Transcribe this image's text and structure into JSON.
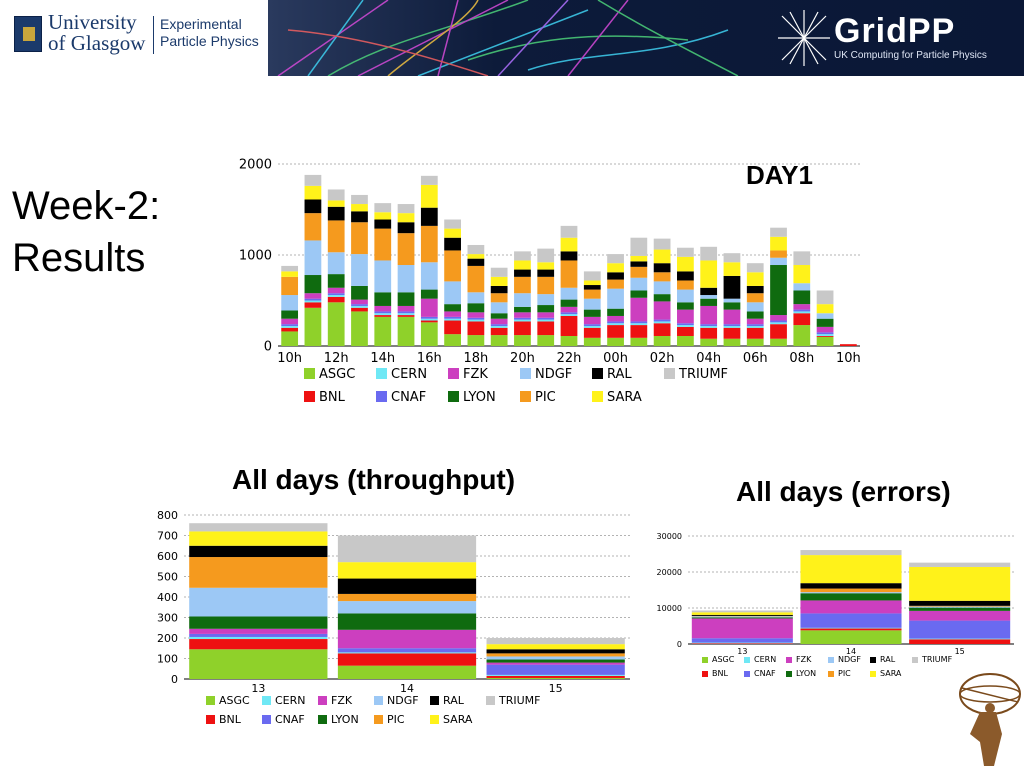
{
  "header": {
    "university_line1": "University",
    "university_line2": "of Glasgow",
    "department_line1": "Experimental",
    "department_line2": "Particle Physics",
    "project_name": "GridPP",
    "project_tagline": "UK Computing for Particle Physics"
  },
  "slide": {
    "title_line1": "Week-2:",
    "title_line2": "Results",
    "label_day1": "DAY1",
    "label_throughput": "All days (throughput)",
    "label_errors": "All days (errors)"
  },
  "colors": {
    "ASGC": "#8fd12a",
    "CERN": "#6fe8f5",
    "FZK": "#cc3fbf",
    "NDGF": "#9cc8f5",
    "RAL": "#000000",
    "TRIUMF": "#c8c8c8",
    "BNL": "#ee1111",
    "CNAF": "#6a6af0",
    "LYON": "#0f6b0f",
    "PIC": "#f59a1e",
    "SARA": "#fff21a"
  },
  "legend": {
    "row1": [
      "ASGC",
      "CERN",
      "FZK",
      "NDGF",
      "RAL",
      "TRIUMF"
    ],
    "row2": [
      "BNL",
      "CNAF",
      "LYON",
      "PIC",
      "SARA"
    ]
  },
  "chart_data": [
    {
      "id": "day1",
      "type": "bar",
      "stacked": true,
      "categories": [
        "10h",
        "11h",
        "12h",
        "13h",
        "14h",
        "15h",
        "16h",
        "17h",
        "18h",
        "19h",
        "20h",
        "21h",
        "22h",
        "23h",
        "00h",
        "01h",
        "02h",
        "03h",
        "04h",
        "05h",
        "06h",
        "07h",
        "08h",
        "09h",
        "10h"
      ],
      "tick_labels": [
        "10h",
        "12h",
        "14h",
        "16h",
        "18h",
        "20h",
        "22h",
        "00h",
        "02h",
        "04h",
        "06h",
        "08h",
        "10h"
      ],
      "ylim": [
        0,
        2000
      ],
      "yticks": [
        0,
        1000,
        2000
      ],
      "series": [
        {
          "name": "ASGC",
          "values": [
            160,
            420,
            480,
            380,
            320,
            320,
            260,
            130,
            120,
            120,
            120,
            120,
            110,
            90,
            90,
            90,
            110,
            110,
            80,
            80,
            80,
            80,
            230,
            100,
            0
          ]
        },
        {
          "name": "BNL",
          "values": [
            40,
            60,
            60,
            40,
            20,
            20,
            20,
            150,
            150,
            80,
            150,
            150,
            220,
            110,
            140,
            140,
            140,
            100,
            120,
            120,
            120,
            160,
            130,
            10,
            20
          ]
        },
        {
          "name": "CERN",
          "values": [
            20,
            20,
            20,
            20,
            20,
            20,
            20,
            20,
            20,
            20,
            20,
            20,
            20,
            20,
            20,
            20,
            20,
            20,
            20,
            20,
            20,
            20,
            20,
            20,
            0
          ]
        },
        {
          "name": "CNAF",
          "values": [
            20,
            20,
            20,
            20,
            20,
            20,
            20,
            20,
            20,
            20,
            20,
            20,
            20,
            20,
            20,
            20,
            20,
            20,
            20,
            20,
            20,
            20,
            20,
            20,
            0
          ]
        },
        {
          "name": "FZK",
          "values": [
            60,
            60,
            60,
            50,
            60,
            60,
            200,
            60,
            60,
            60,
            60,
            60,
            60,
            80,
            60,
            260,
            200,
            150,
            200,
            160,
            60,
            60,
            60,
            60,
            0
          ]
        },
        {
          "name": "LYON",
          "values": [
            90,
            200,
            150,
            150,
            150,
            150,
            100,
            80,
            100,
            60,
            60,
            80,
            80,
            80,
            80,
            80,
            80,
            80,
            80,
            80,
            80,
            550,
            150,
            90,
            0
          ]
        },
        {
          "name": "NDGF",
          "values": [
            170,
            380,
            240,
            350,
            350,
            300,
            300,
            250,
            120,
            120,
            150,
            120,
            130,
            120,
            220,
            140,
            140,
            140,
            40,
            40,
            100,
            80,
            80,
            60,
            0
          ]
        },
        {
          "name": "PIC",
          "values": [
            200,
            300,
            350,
            350,
            350,
            350,
            400,
            340,
            290,
            100,
            180,
            190,
            300,
            100,
            100,
            120,
            100,
            100,
            0,
            0,
            100,
            80,
            0,
            0,
            0
          ]
        },
        {
          "name": "RAL",
          "values": [
            0,
            150,
            150,
            120,
            100,
            120,
            200,
            140,
            80,
            80,
            80,
            80,
            100,
            50,
            80,
            60,
            100,
            100,
            80,
            250,
            80,
            0,
            0,
            0,
            0
          ]
        },
        {
          "name": "SARA",
          "values": [
            60,
            150,
            70,
            80,
            80,
            100,
            250,
            100,
            50,
            100,
            100,
            80,
            150,
            50,
            100,
            60,
            150,
            160,
            300,
            150,
            150,
            150,
            200,
            100,
            0
          ]
        },
        {
          "name": "TRIUMF",
          "values": [
            60,
            120,
            120,
            100,
            100,
            100,
            100,
            100,
            100,
            100,
            100,
            150,
            130,
            100,
            100,
            200,
            120,
            100,
            150,
            100,
            100,
            100,
            150,
            150,
            0
          ]
        }
      ]
    },
    {
      "id": "throughput",
      "type": "bar",
      "stacked": true,
      "categories": [
        "13",
        "14",
        "15"
      ],
      "ylim": [
        0,
        800
      ],
      "yticks": [
        0,
        100,
        200,
        300,
        400,
        500,
        600,
        700,
        800
      ],
      "series": [
        {
          "name": "ASGC",
          "values": [
            145,
            65,
            5
          ]
        },
        {
          "name": "BNL",
          "values": [
            50,
            60,
            10
          ]
        },
        {
          "name": "CERN",
          "values": [
            10,
            5,
            5
          ]
        },
        {
          "name": "CNAF",
          "values": [
            15,
            20,
            50
          ]
        },
        {
          "name": "FZK",
          "values": [
            25,
            90,
            10
          ]
        },
        {
          "name": "LYON",
          "values": [
            60,
            80,
            15
          ]
        },
        {
          "name": "NDGF",
          "values": [
            140,
            60,
            15
          ]
        },
        {
          "name": "PIC",
          "values": [
            150,
            35,
            15
          ]
        },
        {
          "name": "RAL",
          "values": [
            55,
            75,
            20
          ]
        },
        {
          "name": "SARA",
          "values": [
            70,
            80,
            25
          ]
        },
        {
          "name": "TRIUMF",
          "values": [
            40,
            130,
            30
          ]
        }
      ]
    },
    {
      "id": "errors",
      "type": "bar",
      "stacked": true,
      "categories": [
        "13",
        "14",
        "15"
      ],
      "ylim": [
        0,
        30000
      ],
      "yticks": [
        0,
        10000,
        20000,
        30000
      ],
      "series": [
        {
          "name": "ASGC",
          "values": [
            0,
            3800,
            0
          ]
        },
        {
          "name": "BNL",
          "values": [
            200,
            500,
            1300
          ]
        },
        {
          "name": "CERN",
          "values": [
            200,
            200,
            200
          ]
        },
        {
          "name": "CNAF",
          "values": [
            1200,
            4000,
            5000
          ]
        },
        {
          "name": "FZK",
          "values": [
            5500,
            3600,
            2700
          ]
        },
        {
          "name": "LYON",
          "values": [
            300,
            2000,
            900
          ]
        },
        {
          "name": "NDGF",
          "values": [
            300,
            300,
            300
          ]
        },
        {
          "name": "PIC",
          "values": [
            100,
            1000,
            200
          ]
        },
        {
          "name": "RAL",
          "values": [
            300,
            1500,
            1400
          ]
        },
        {
          "name": "SARA",
          "values": [
            700,
            7800,
            9400
          ]
        },
        {
          "name": "TRIUMF",
          "values": [
            500,
            1400,
            1200
          ]
        }
      ]
    }
  ]
}
